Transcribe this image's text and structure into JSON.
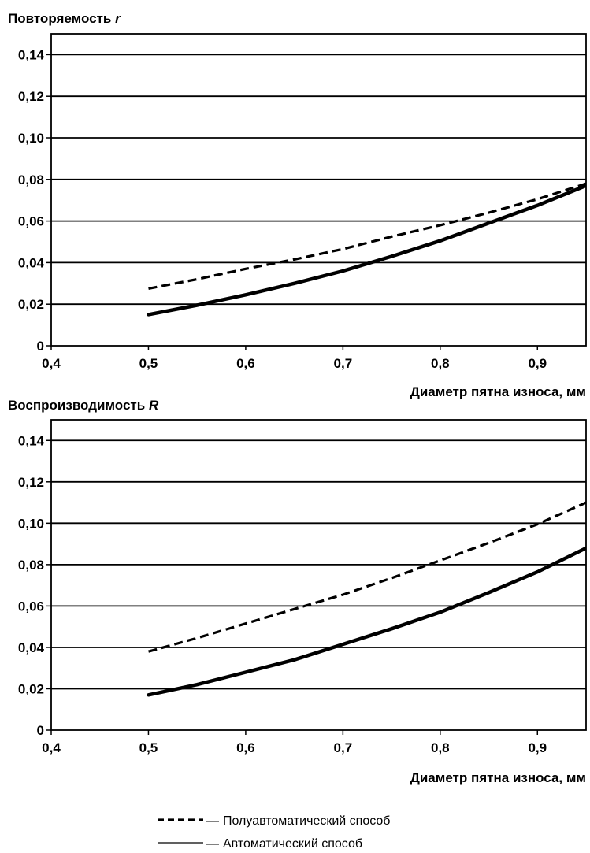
{
  "chart_data": [
    {
      "type": "line",
      "title": "",
      "ylabel": "Повторяемость r",
      "ylabel_text": "Повторяемость ",
      "ylabel_var": "r",
      "xlabel": "Диаметр пятна износа, мм",
      "xlim": [
        0.4,
        0.95
      ],
      "ylim": [
        0,
        0.15
      ],
      "x_ticks": [
        "0,4",
        "0,5",
        "0,6",
        "0,7",
        "0,8",
        "0,9"
      ],
      "y_ticks": [
        "0",
        "0,02",
        "0,04",
        "0,06",
        "0,08",
        "0,10",
        "0,12",
        "0,14"
      ],
      "grid": "horizontal",
      "series": [
        {
          "name": "Полуавтоматический способ",
          "style": "dashed",
          "x": [
            0.5,
            0.55,
            0.6,
            0.65,
            0.7,
            0.75,
            0.8,
            0.85,
            0.9,
            0.95
          ],
          "y": [
            0.0275,
            0.032,
            0.037,
            0.0415,
            0.0465,
            0.0525,
            0.058,
            0.064,
            0.0705,
            0.078
          ]
        },
        {
          "name": "Автоматический способ",
          "style": "solid",
          "x": [
            0.5,
            0.55,
            0.6,
            0.65,
            0.7,
            0.75,
            0.8,
            0.85,
            0.9,
            0.95
          ],
          "y": [
            0.015,
            0.0195,
            0.0245,
            0.03,
            0.036,
            0.043,
            0.0505,
            0.059,
            0.0675,
            0.077
          ]
        }
      ]
    },
    {
      "type": "line",
      "title": "",
      "ylabel": "Воспроизводимость R",
      "ylabel_text": "Воспроизводимость ",
      "ylabel_var": "R",
      "xlabel": "Диаметр пятна износа, мм",
      "xlim": [
        0.4,
        0.95
      ],
      "ylim": [
        0,
        0.15
      ],
      "x_ticks": [
        "0,4",
        "0,5",
        "0,6",
        "0,7",
        "0,8",
        "0,9"
      ],
      "y_ticks": [
        "0",
        "0,02",
        "0,04",
        "0,06",
        "0,08",
        "0,10",
        "0,12",
        "0,14"
      ],
      "grid": "horizontal",
      "series": [
        {
          "name": "Полуавтоматический способ",
          "style": "dashed",
          "x": [
            0.5,
            0.55,
            0.6,
            0.65,
            0.7,
            0.75,
            0.8,
            0.85,
            0.9,
            0.95
          ],
          "y": [
            0.038,
            0.0445,
            0.0515,
            0.0585,
            0.0655,
            0.0735,
            0.082,
            0.0905,
            0.0995,
            0.11
          ]
        },
        {
          "name": "Автоматический способ",
          "style": "solid",
          "x": [
            0.5,
            0.55,
            0.6,
            0.65,
            0.7,
            0.75,
            0.8,
            0.85,
            0.9,
            0.95
          ],
          "y": [
            0.017,
            0.022,
            0.028,
            0.034,
            0.0415,
            0.049,
            0.057,
            0.0665,
            0.0765,
            0.088
          ]
        }
      ]
    }
  ],
  "legend": {
    "position": "bottom-center",
    "items": [
      {
        "marker": "dashed",
        "separator": "—",
        "label": "Полуавтоматический способ"
      },
      {
        "marker": "solid",
        "separator": "—",
        "label": "Автоматический способ"
      }
    ]
  }
}
